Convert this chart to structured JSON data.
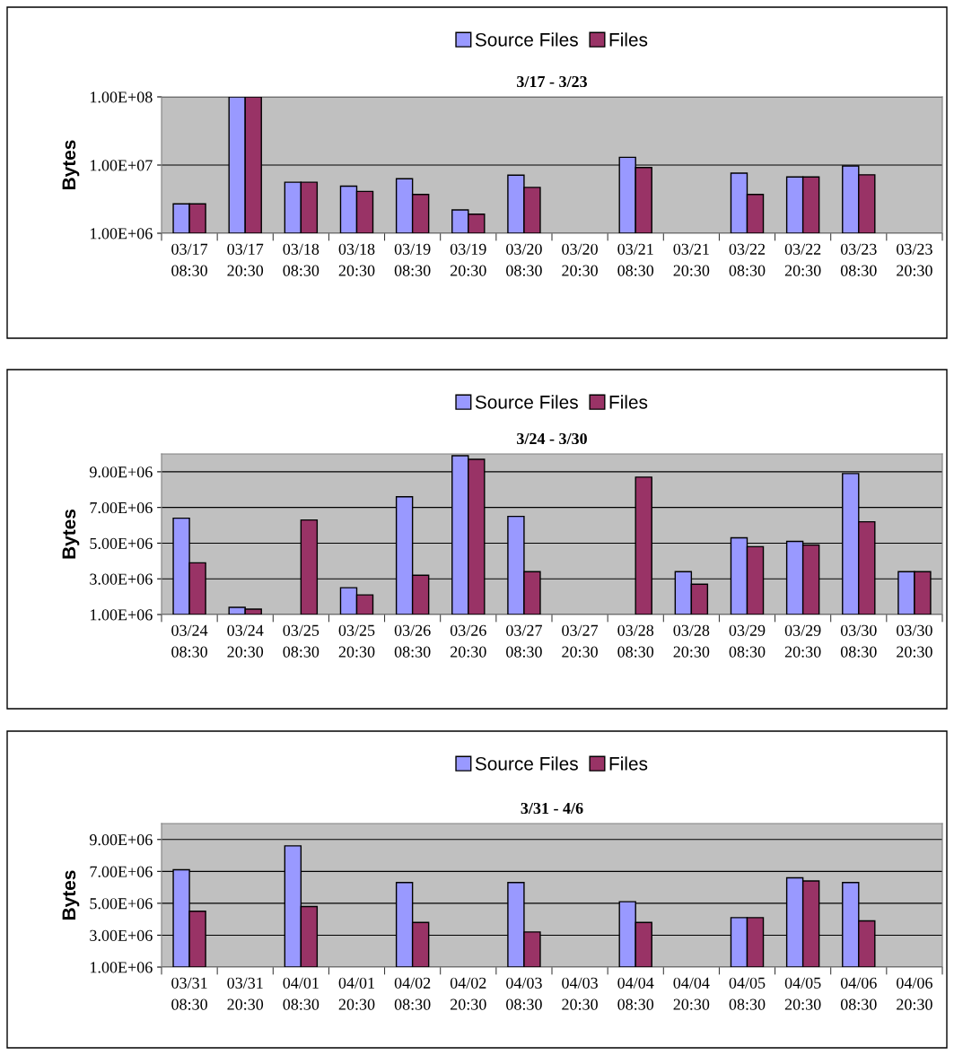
{
  "chart_data": [
    {
      "type": "bar",
      "title": "3/17 - 3/23",
      "ylabel": "Bytes",
      "categories": [
        "03/17\n08:30",
        "03/17\n20:30",
        "03/18\n08:30",
        "03/18\n20:30",
        "03/19\n08:30",
        "03/19\n20:30",
        "03/20\n08:30",
        "03/20\n20:30",
        "03/21\n08:30",
        "03/21\n20:30",
        "03/22\n08:30",
        "03/22\n20:30",
        "03/23\n08:30",
        "03/23\n20:30"
      ],
      "series": [
        {
          "name": "Source Files",
          "color": "#9999ff",
          "values": [
            2700000,
            100000000,
            5600000,
            4900000,
            6300000,
            2200000,
            7100000,
            null,
            13000000,
            null,
            7600000,
            6700000,
            9700000,
            null
          ]
        },
        {
          "name": "Files",
          "color": "#993366",
          "values": [
            2700000,
            100000000,
            5600000,
            4100000,
            3700000,
            1900000,
            4700000,
            null,
            9200000,
            null,
            3700000,
            6700000,
            7200000,
            null
          ]
        }
      ],
      "log": "y",
      "ylim": [
        1000000,
        100000000
      ],
      "yticks": [
        {
          "value": 1000000,
          "label": "1.00E+06"
        },
        {
          "value": 10000000,
          "label": "1.00E+07"
        },
        {
          "value": 100000000,
          "label": "1.00E+08"
        }
      ],
      "grid": "y",
      "legend": "top"
    },
    {
      "type": "bar",
      "title": "3/24 - 3/30",
      "ylabel": "Bytes",
      "categories": [
        "03/24\n08:30",
        "03/24\n20:30",
        "03/25\n08:30",
        "03/25\n20:30",
        "03/26\n08:30",
        "03/26\n20:30",
        "03/27\n08:30",
        "03/27\n20:30",
        "03/28\n08:30",
        "03/28\n20:30",
        "03/29\n08:30",
        "03/29\n20:30",
        "03/30\n08:30",
        "03/30\n20:30"
      ],
      "series": [
        {
          "name": "Source Files",
          "color": "#9999ff",
          "values": [
            6400000,
            1400000,
            null,
            2500000,
            7600000,
            9900000,
            6500000,
            null,
            null,
            3400000,
            5300000,
            5100000,
            8900000,
            3400000
          ]
        },
        {
          "name": "Files",
          "color": "#993366",
          "values": [
            3900000,
            1300000,
            6300000,
            2100000,
            3200000,
            9700000,
            3400000,
            null,
            8700000,
            2700000,
            4800000,
            4900000,
            6200000,
            3400000
          ]
        }
      ],
      "ylim": [
        1000000,
        10000000
      ],
      "yticks": [
        {
          "value": 1000000,
          "label": "1.00E+06"
        },
        {
          "value": 3000000,
          "label": "3.00E+06"
        },
        {
          "value": 5000000,
          "label": "5.00E+06"
        },
        {
          "value": 7000000,
          "label": "7.00E+06"
        },
        {
          "value": 9000000,
          "label": "9.00E+06"
        }
      ],
      "grid": "y",
      "legend": "top"
    },
    {
      "type": "bar",
      "title": "3/31 - 4/6",
      "ylabel": "Bytes",
      "categories": [
        "03/31\n08:30",
        "03/31\n20:30",
        "04/01\n08:30",
        "04/01\n20:30",
        "04/02\n08:30",
        "04/02\n20:30",
        "04/03\n08:30",
        "04/03\n20:30",
        "04/04\n08:30",
        "04/04\n20:30",
        "04/05\n08:30",
        "04/05\n20:30",
        "04/06\n08:30",
        "04/06\n20:30"
      ],
      "series": [
        {
          "name": "Source Files",
          "color": "#9999ff",
          "values": [
            7100000,
            null,
            8600000,
            null,
            6300000,
            null,
            6300000,
            null,
            5100000,
            null,
            4100000,
            6600000,
            6300000,
            null
          ]
        },
        {
          "name": "Files",
          "color": "#993366",
          "values": [
            4500000,
            null,
            4800000,
            null,
            3800000,
            null,
            3200000,
            null,
            3800000,
            null,
            4100000,
            6400000,
            3900000,
            null
          ]
        }
      ],
      "ylim": [
        1000000,
        10000000
      ],
      "yticks": [
        {
          "value": 1000000,
          "label": "1.00E+06"
        },
        {
          "value": 3000000,
          "label": "3.00E+06"
        },
        {
          "value": 5000000,
          "label": "5.00E+06"
        },
        {
          "value": 7000000,
          "label": "7.00E+06"
        },
        {
          "value": 9000000,
          "label": "9.00E+06"
        }
      ],
      "grid": "y",
      "legend": "top"
    }
  ]
}
